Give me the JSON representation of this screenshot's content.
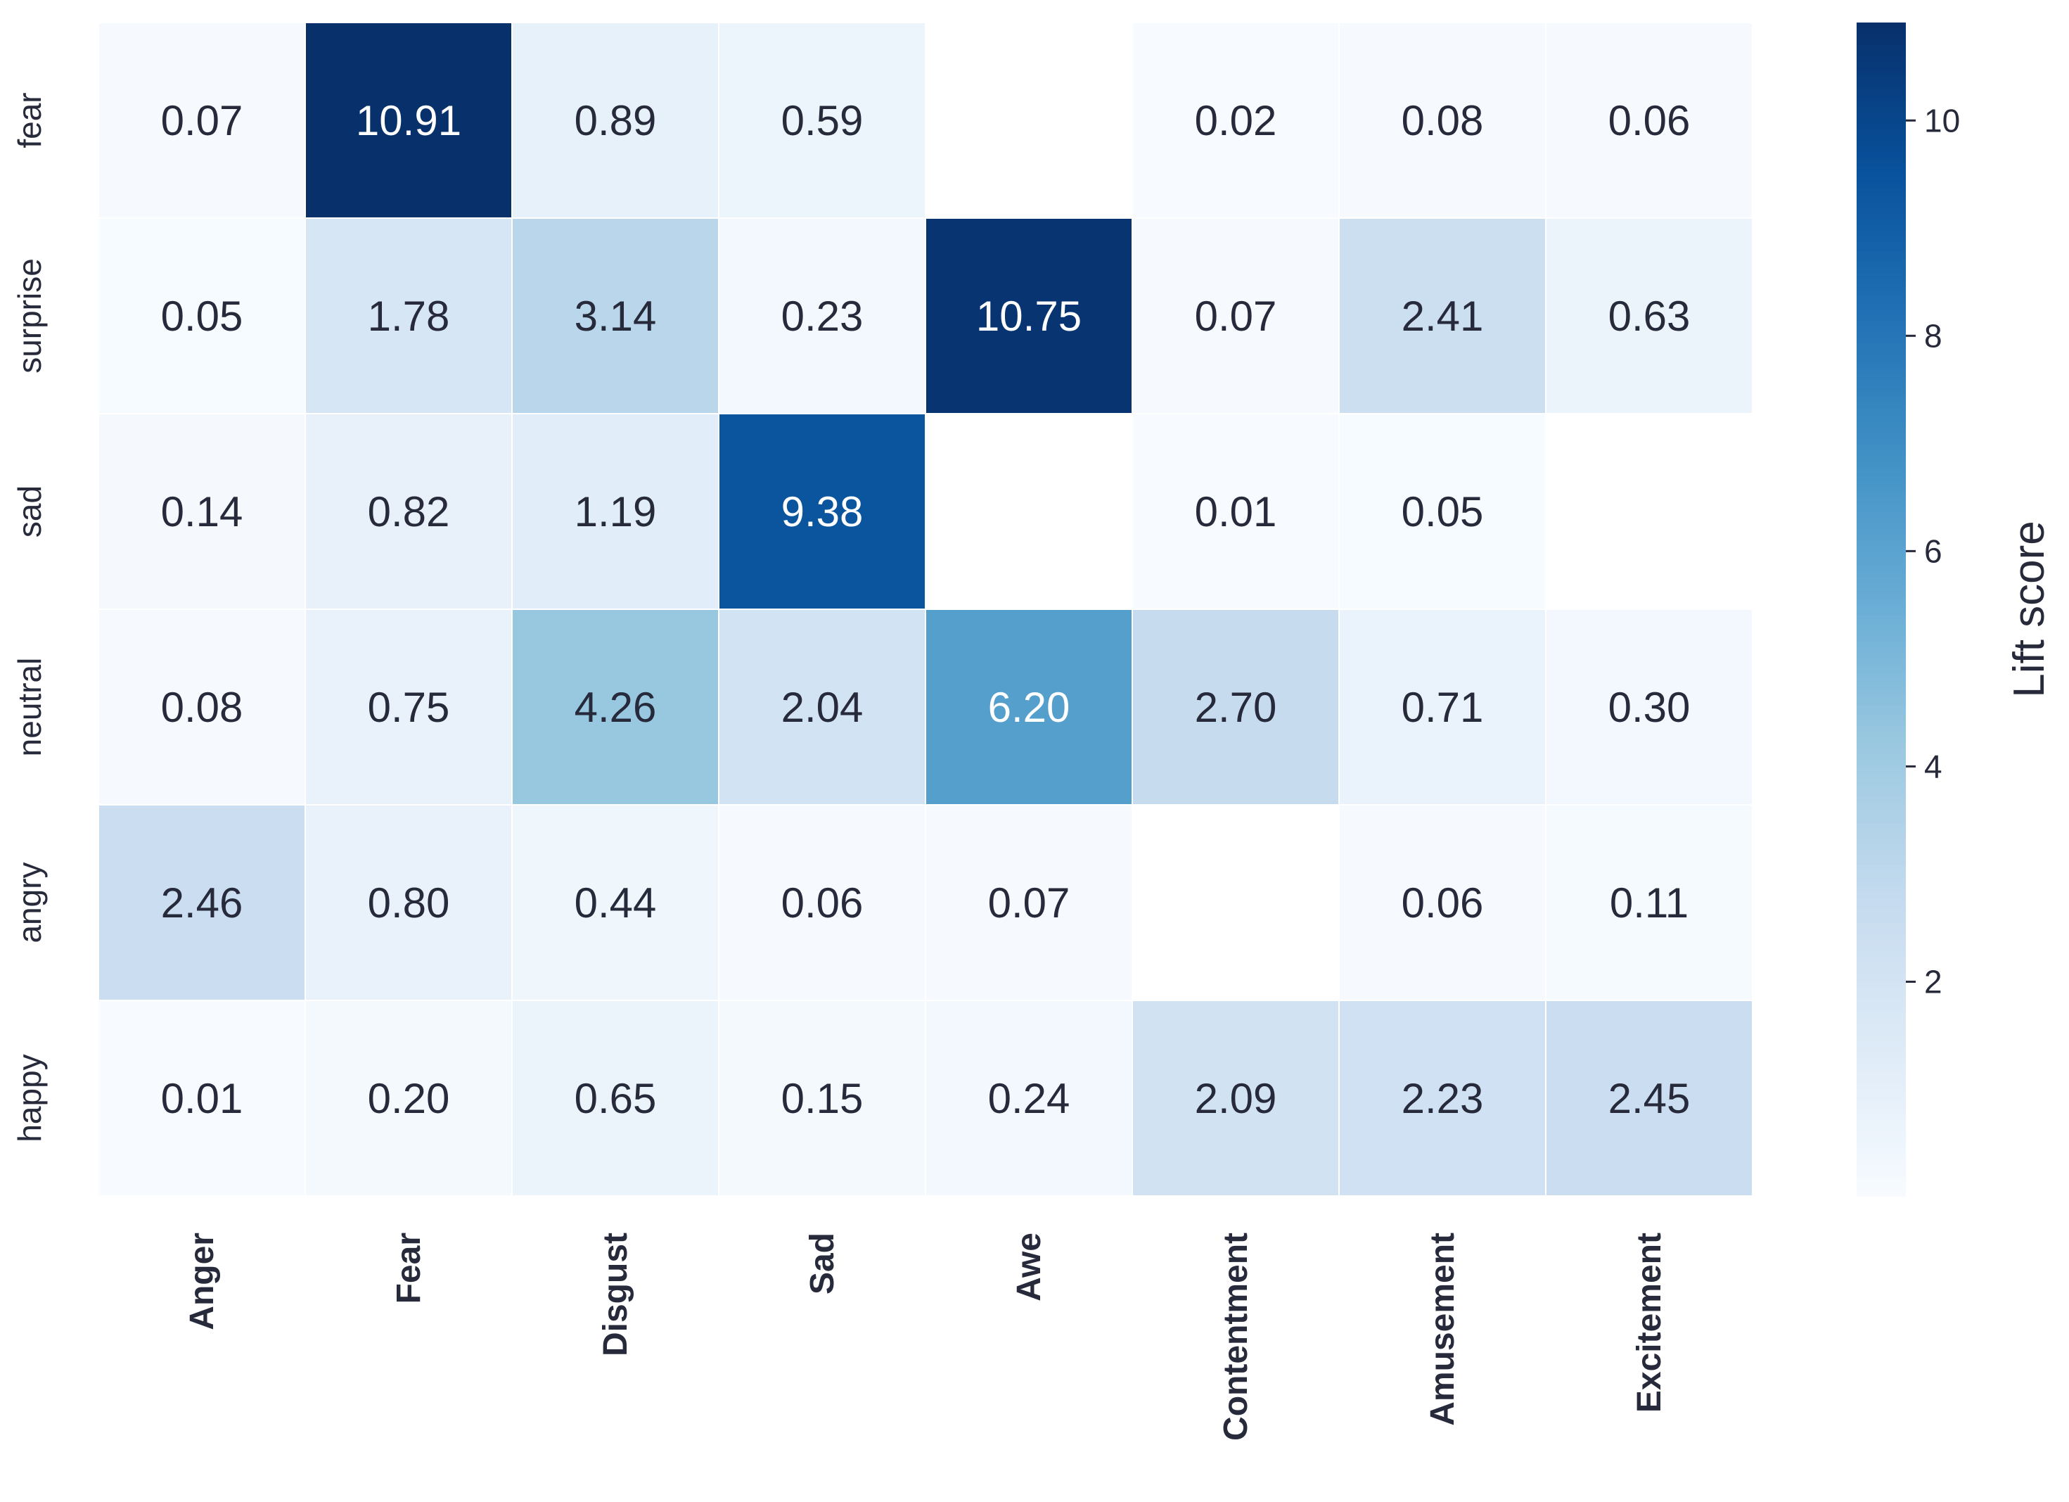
{
  "chart_data": {
    "type": "heatmap",
    "rows": [
      "fear",
      "surprise",
      "sad",
      "neutral",
      "angry",
      "happy"
    ],
    "columns": [
      "Anger",
      "Fear",
      "Disgust",
      "Sad",
      "Awe",
      "Contentment",
      "Amusement",
      "Excitement"
    ],
    "values": [
      [
        0.07,
        10.91,
        0.89,
        0.59,
        null,
        0.02,
        0.08,
        0.06
      ],
      [
        0.05,
        1.78,
        3.14,
        0.23,
        10.75,
        0.07,
        2.41,
        0.63
      ],
      [
        0.14,
        0.82,
        1.19,
        9.38,
        null,
        0.01,
        0.05,
        null
      ],
      [
        0.08,
        0.75,
        4.26,
        2.04,
        6.2,
        2.7,
        0.71,
        0.3
      ],
      [
        2.46,
        0.8,
        0.44,
        0.06,
        0.07,
        null,
        0.06,
        0.11
      ],
      [
        0.01,
        0.2,
        0.65,
        0.15,
        0.24,
        2.09,
        2.23,
        2.45
      ]
    ],
    "colorbar": {
      "label": "Lift score",
      "ticks": [
        2,
        4,
        6,
        8,
        10
      ],
      "range": [
        0.01,
        10.91
      ],
      "colormap": "Blues"
    }
  }
}
